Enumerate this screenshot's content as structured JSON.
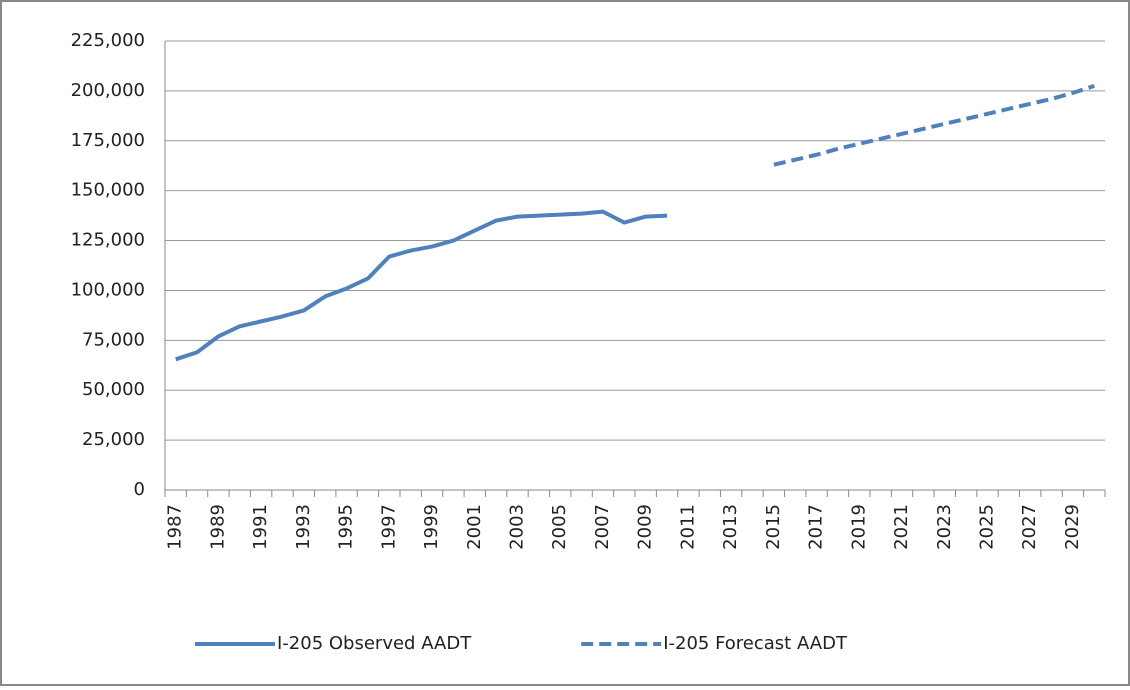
{
  "chart_data": {
    "type": "line",
    "categories": [
      "1987",
      null,
      "1989",
      null,
      "1991",
      null,
      "1993",
      null,
      "1995",
      null,
      "1997",
      null,
      "1999",
      null,
      "2001",
      null,
      "2003",
      null,
      "2005",
      null,
      "2007",
      null,
      "2009",
      null,
      "2011",
      null,
      "2013",
      null,
      "2015",
      null,
      "2017",
      null,
      "2019",
      null,
      "2021",
      null,
      "2023",
      null,
      "2025",
      null,
      "2027",
      null,
      "2029",
      null
    ],
    "series": [
      {
        "name": "I-205 Observed AADT",
        "color": "#4f81bd",
        "dashed": false,
        "values": [
          65500,
          69000,
          77000,
          82000,
          84500,
          87000,
          90000,
          97000,
          101000,
          106000,
          117000,
          120000,
          122000,
          125000,
          130000,
          135000,
          137000,
          137500,
          138000,
          138500,
          139500,
          134000,
          137000,
          137500,
          null,
          null,
          null,
          null,
          null,
          null,
          null,
          null,
          null,
          null,
          null,
          null,
          null,
          null,
          null,
          null,
          null,
          null,
          null,
          null
        ]
      },
      {
        "name": "I-205 Forecast AADT",
        "color": "#4f81bd",
        "dashed": true,
        "values": [
          null,
          null,
          null,
          null,
          null,
          null,
          null,
          null,
          null,
          null,
          null,
          null,
          null,
          null,
          null,
          null,
          null,
          null,
          null,
          null,
          null,
          null,
          null,
          null,
          null,
          null,
          null,
          null,
          163000,
          165500,
          168000,
          171000,
          173500,
          176000,
          178500,
          181000,
          183500,
          186000,
          188500,
          191000,
          193500,
          196000,
          199000,
          202500
        ]
      }
    ],
    "ylim": [
      0,
      225000
    ],
    "yticks": [
      0,
      {
        "value": 25000,
        "label": "25,000"
      },
      {
        "value": 50000,
        "label": "50,000"
      },
      {
        "value": 75000,
        "label": "75,000"
      },
      {
        "value": 100000,
        "label": "100,000"
      },
      {
        "value": 125000,
        "label": "125,000"
      },
      {
        "value": 150000,
        "label": "150,000"
      },
      {
        "value": 175000,
        "label": "175,000"
      },
      {
        "value": 200000,
        "label": "200,000"
      },
      {
        "value": 225000,
        "label": "225,000"
      }
    ],
    "grid": true,
    "legend": "bottom"
  }
}
